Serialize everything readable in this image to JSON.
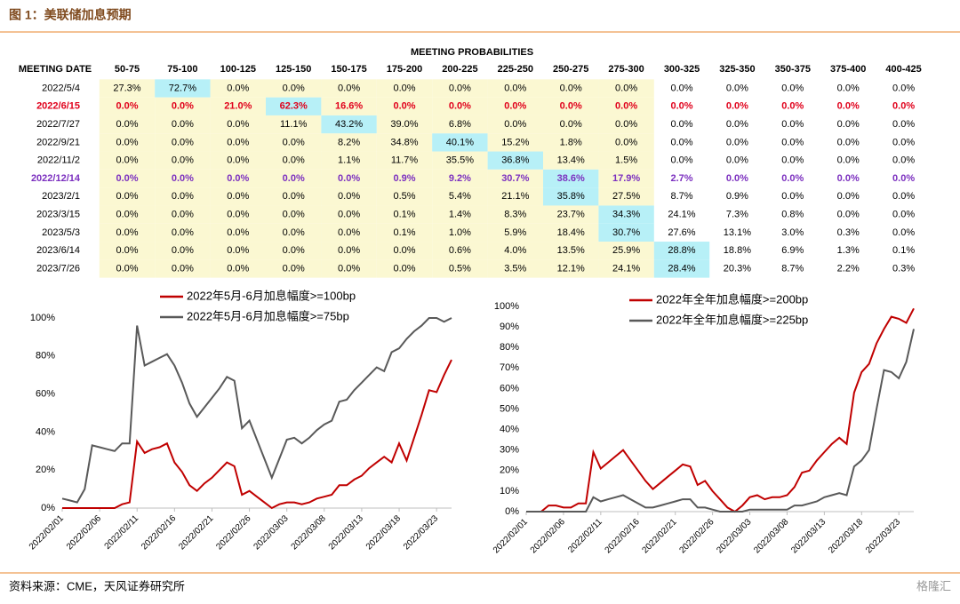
{
  "header": {
    "title": "图 1：美联储加息预期"
  },
  "table": {
    "title": "MEETING PROBABILITIES",
    "columns": [
      "MEETING DATE",
      "50-75",
      "75-100",
      "100-125",
      "125-150",
      "150-175",
      "175-200",
      "200-225",
      "225-250",
      "250-275",
      "275-300",
      "300-325",
      "325-350",
      "350-375",
      "375-400",
      "400-425"
    ],
    "rows": [
      {
        "date": "2022/5/4",
        "values": [
          "27.3%",
          "72.7%",
          "0.0%",
          "0.0%",
          "0.0%",
          "0.0%",
          "0.0%",
          "0.0%",
          "0.0%",
          "0.0%",
          "0.0%",
          "0.0%",
          "0.0%",
          "0.0%",
          "0.0%"
        ]
      },
      {
        "date": "2022/6/15",
        "color": "#e0001b",
        "values": [
          "0.0%",
          "0.0%",
          "21.0%",
          "62.3%",
          "16.6%",
          "0.0%",
          "0.0%",
          "0.0%",
          "0.0%",
          "0.0%",
          "0.0%",
          "0.0%",
          "0.0%",
          "0.0%",
          "0.0%"
        ]
      },
      {
        "date": "2022/7/27",
        "values": [
          "0.0%",
          "0.0%",
          "0.0%",
          "11.1%",
          "43.2%",
          "39.0%",
          "6.8%",
          "0.0%",
          "0.0%",
          "0.0%",
          "0.0%",
          "0.0%",
          "0.0%",
          "0.0%",
          "0.0%"
        ]
      },
      {
        "date": "2022/9/21",
        "values": [
          "0.0%",
          "0.0%",
          "0.0%",
          "0.0%",
          "8.2%",
          "34.8%",
          "40.1%",
          "15.2%",
          "1.8%",
          "0.0%",
          "0.0%",
          "0.0%",
          "0.0%",
          "0.0%",
          "0.0%"
        ]
      },
      {
        "date": "2022/11/2",
        "values": [
          "0.0%",
          "0.0%",
          "0.0%",
          "0.0%",
          "1.1%",
          "11.7%",
          "35.5%",
          "36.8%",
          "13.4%",
          "1.5%",
          "0.0%",
          "0.0%",
          "0.0%",
          "0.0%",
          "0.0%"
        ]
      },
      {
        "date": "2022/12/14",
        "color": "#7b2fbf",
        "values": [
          "0.0%",
          "0.0%",
          "0.0%",
          "0.0%",
          "0.0%",
          "0.9%",
          "9.2%",
          "30.7%",
          "38.6%",
          "17.9%",
          "2.7%",
          "0.0%",
          "0.0%",
          "0.0%",
          "0.0%"
        ]
      },
      {
        "date": "2023/2/1",
        "values": [
          "0.0%",
          "0.0%",
          "0.0%",
          "0.0%",
          "0.0%",
          "0.5%",
          "5.4%",
          "21.1%",
          "35.8%",
          "27.5%",
          "8.7%",
          "0.9%",
          "0.0%",
          "0.0%",
          "0.0%"
        ]
      },
      {
        "date": "2023/3/15",
        "values": [
          "0.0%",
          "0.0%",
          "0.0%",
          "0.0%",
          "0.0%",
          "0.1%",
          "1.4%",
          "8.3%",
          "23.7%",
          "34.3%",
          "24.1%",
          "7.3%",
          "0.8%",
          "0.0%",
          "0.0%"
        ]
      },
      {
        "date": "2023/5/3",
        "values": [
          "0.0%",
          "0.0%",
          "0.0%",
          "0.0%",
          "0.0%",
          "0.1%",
          "1.0%",
          "5.9%",
          "18.4%",
          "30.7%",
          "27.6%",
          "13.1%",
          "3.0%",
          "0.3%",
          "0.0%"
        ]
      },
      {
        "date": "2023/6/14",
        "values": [
          "0.0%",
          "0.0%",
          "0.0%",
          "0.0%",
          "0.0%",
          "0.0%",
          "0.6%",
          "4.0%",
          "13.5%",
          "25.9%",
          "28.8%",
          "18.8%",
          "6.9%",
          "1.3%",
          "0.1%"
        ]
      },
      {
        "date": "2023/7/26",
        "values": [
          "0.0%",
          "0.0%",
          "0.0%",
          "0.0%",
          "0.0%",
          "0.0%",
          "0.5%",
          "3.5%",
          "12.1%",
          "24.1%",
          "28.4%",
          "20.3%",
          "8.7%",
          "2.2%",
          "0.3%"
        ]
      }
    ]
  },
  "chart_data": [
    {
      "type": "line",
      "categories": [
        "2022/02/01",
        null,
        null,
        null,
        null,
        "2022/02/06",
        null,
        null,
        null,
        null,
        "2022/02/11",
        null,
        null,
        null,
        null,
        "2022/02/16",
        null,
        null,
        null,
        null,
        "2022/02/21",
        null,
        null,
        null,
        null,
        "2022/02/26",
        null,
        null,
        null,
        null,
        "2022/03/03",
        null,
        null,
        null,
        null,
        "2022/03/08",
        null,
        null,
        null,
        null,
        "2022/03/13",
        null,
        null,
        null,
        null,
        "2022/03/18",
        null,
        null,
        null,
        null,
        "2022/03/23",
        null,
        null
      ],
      "ylim": [
        0,
        100
      ],
      "yticks": [
        {
          "value": 0,
          "label": "0%"
        },
        {
          "value": 20,
          "label": "20%"
        },
        {
          "value": 40,
          "label": "40%"
        },
        {
          "value": 60,
          "label": "60%"
        },
        {
          "value": 80,
          "label": "80%"
        },
        {
          "value": 100,
          "label": "100%"
        }
      ],
      "series": [
        {
          "name": "2022年5月-6月加息幅度>=100bp",
          "color": "#c00000",
          "values": [
            0,
            0,
            0,
            0,
            0,
            0,
            0,
            0,
            2,
            3,
            35,
            29,
            31,
            32,
            34,
            24,
            19,
            12,
            9,
            13,
            16,
            20,
            24,
            22,
            7,
            9,
            6,
            3,
            0,
            2,
            3,
            3,
            2,
            3,
            5,
            6,
            7,
            12,
            12,
            15,
            17,
            21,
            24,
            27,
            24,
            34,
            25,
            37,
            49,
            62,
            61,
            70,
            78
          ]
        },
        {
          "name": "2022年5月-6月加息幅度>=75bp",
          "color": "#595959",
          "values": [
            5,
            4,
            3,
            10,
            33,
            32,
            31,
            30,
            34,
            34,
            96,
            75,
            77,
            79,
            81,
            75,
            66,
            55,
            48,
            53,
            58,
            63,
            69,
            67,
            42,
            46,
            36,
            26,
            16,
            26,
            36,
            37,
            34,
            37,
            41,
            44,
            46,
            56,
            57,
            62,
            66,
            70,
            74,
            72,
            82,
            84,
            89,
            93,
            96,
            100,
            100,
            98,
            100
          ]
        }
      ]
    },
    {
      "type": "line",
      "categories": [
        "2022/02/01",
        null,
        null,
        null,
        null,
        "2022/02/06",
        null,
        null,
        null,
        null,
        "2022/02/11",
        null,
        null,
        null,
        null,
        "2022/02/16",
        null,
        null,
        null,
        null,
        "2022/02/21",
        null,
        null,
        null,
        null,
        "2022/02/26",
        null,
        null,
        null,
        null,
        "2022/03/03",
        null,
        null,
        null,
        null,
        "2022/03/08",
        null,
        null,
        null,
        null,
        "2022/03/13",
        null,
        null,
        null,
        null,
        "2022/03/18",
        null,
        null,
        null,
        null,
        "2022/03/23",
        null,
        null
      ],
      "ylim": [
        0,
        100
      ],
      "yticks": [
        {
          "value": 0,
          "label": "0%"
        },
        {
          "value": 10,
          "label": "10%"
        },
        {
          "value": 20,
          "label": "20%"
        },
        {
          "value": 30,
          "label": "30%"
        },
        {
          "value": 40,
          "label": "40%"
        },
        {
          "value": 50,
          "label": "50%"
        },
        {
          "value": 60,
          "label": "60%"
        },
        {
          "value": 70,
          "label": "70%"
        },
        {
          "value": 80,
          "label": "80%"
        },
        {
          "value": 90,
          "label": "90%"
        },
        {
          "value": 100,
          "label": "100%"
        }
      ],
      "series": [
        {
          "name": "2022年全年加息幅度>=200bp",
          "color": "#c00000",
          "values": [
            0,
            0,
            0,
            3,
            3,
            2,
            2,
            4,
            4,
            29,
            21,
            24,
            27,
            30,
            25,
            20,
            15,
            11,
            14,
            17,
            20,
            23,
            22,
            13,
            15,
            10,
            6,
            2,
            0,
            3,
            7,
            8,
            6,
            7,
            7,
            8,
            12,
            19,
            20,
            25,
            29,
            33,
            36,
            33,
            58,
            68,
            72,
            82,
            89,
            95,
            94,
            92,
            99
          ]
        },
        {
          "name": "2022年全年加息幅度>=225bp",
          "color": "#595959",
          "values": [
            0,
            0,
            0,
            0,
            0,
            0,
            0,
            0,
            0,
            7,
            5,
            6,
            7,
            8,
            6,
            4,
            2,
            2,
            3,
            4,
            5,
            6,
            6,
            2,
            2,
            1,
            0,
            0,
            0,
            0,
            1,
            1,
            1,
            1,
            1,
            1,
            3,
            3,
            4,
            5,
            7,
            8,
            9,
            8,
            22,
            25,
            30,
            50,
            69,
            68,
            65,
            73,
            89
          ]
        }
      ]
    }
  ],
  "footer": {
    "source": "资料来源：CME，天风证券研究所",
    "watermark": "格隆汇"
  }
}
